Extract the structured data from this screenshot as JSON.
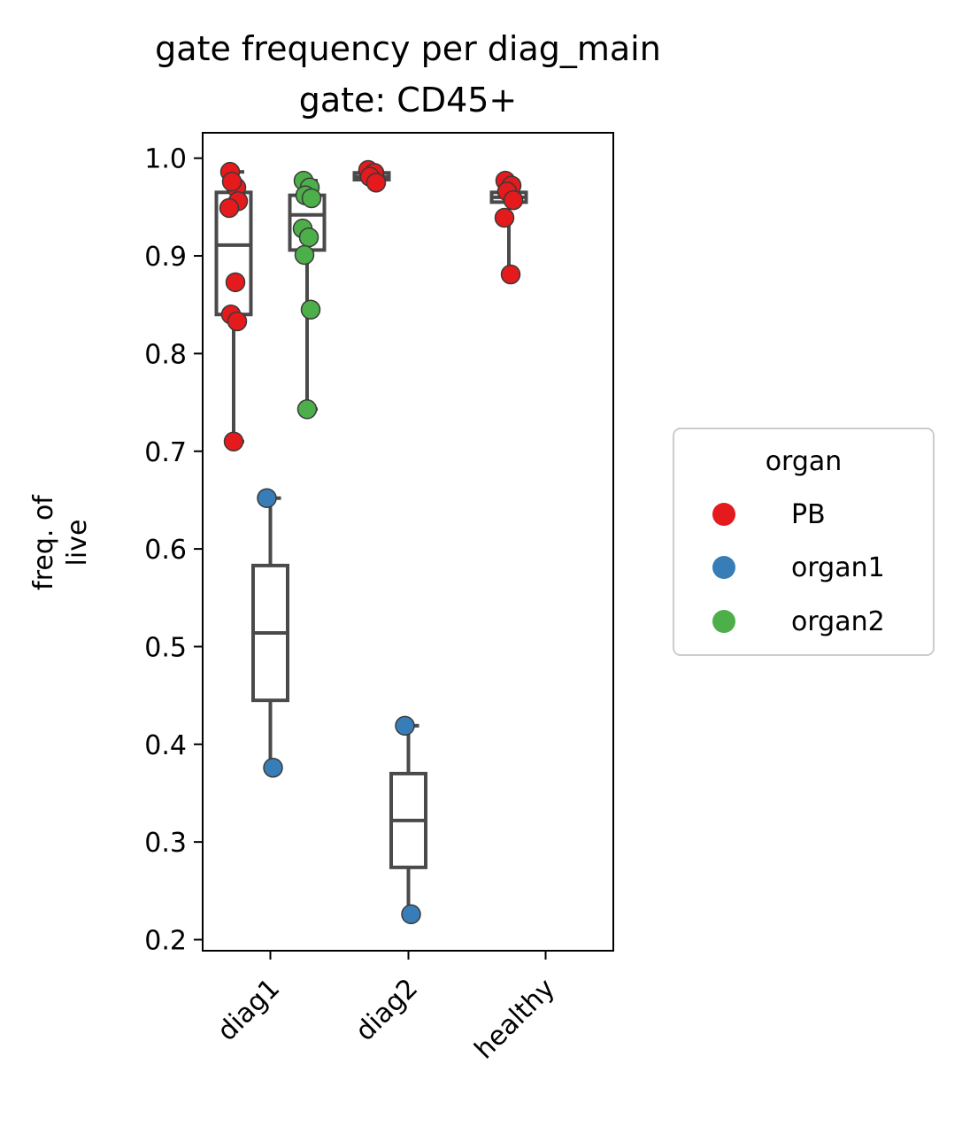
{
  "chart_data": {
    "type": "box",
    "title": "gate frequency per diag_main",
    "subtitle": "gate: CD45+",
    "xlabel": "",
    "ylabel_line1": "freq. of",
    "ylabel_line2": "live",
    "ylim": [
      0.19,
      1.025
    ],
    "yticks": [
      "0.2",
      "0.3",
      "0.4",
      "0.5",
      "0.6",
      "0.7",
      "0.8",
      "0.9",
      "1.0"
    ],
    "categories": [
      "diag1",
      "diag2",
      "healthy"
    ],
    "grid": false,
    "legend": {
      "title": "organ",
      "placement": "right",
      "entries": [
        {
          "name": "PB",
          "color": "#e41a1c"
        },
        {
          "name": "organ1",
          "color": "#377eb8"
        },
        {
          "name": "organ2",
          "color": "#4daf4a"
        }
      ]
    },
    "boxes": [
      {
        "category": "diag1",
        "organ": "PB",
        "min": 0.71,
        "q1": 0.84,
        "median": 0.911,
        "q3": 0.965,
        "max": 0.986
      },
      {
        "category": "diag1",
        "organ": "organ1",
        "min": 0.376,
        "q1": 0.445,
        "median": 0.514,
        "q3": 0.583,
        "max": 0.652
      },
      {
        "category": "diag1",
        "organ": "organ2",
        "min": 0.743,
        "q1": 0.906,
        "median": 0.942,
        "q3": 0.962,
        "max": 0.977
      },
      {
        "category": "diag2",
        "organ": "PB",
        "min": 0.975,
        "q1": 0.978,
        "median": 0.981,
        "q3": 0.985,
        "max": 0.988
      },
      {
        "category": "diag2",
        "organ": "organ1",
        "min": 0.226,
        "q1": 0.274,
        "median": 0.322,
        "q3": 0.37,
        "max": 0.419
      },
      {
        "category": "healthy",
        "organ": "PB",
        "min": 0.881,
        "q1": 0.955,
        "median": 0.96,
        "q3": 0.965,
        "max": 0.977
      }
    ],
    "points": [
      {
        "category": "diag1",
        "organ": "PB",
        "values": [
          0.986,
          0.97,
          0.976,
          0.956,
          0.949,
          0.873,
          0.84,
          0.833,
          0.71
        ]
      },
      {
        "category": "diag1",
        "organ": "organ1",
        "values": [
          0.652,
          0.376
        ]
      },
      {
        "category": "diag1",
        "organ": "organ2",
        "values": [
          0.977,
          0.97,
          0.962,
          0.959,
          0.928,
          0.919,
          0.901,
          0.845,
          0.743
        ]
      },
      {
        "category": "diag2",
        "organ": "PB",
        "values": [
          0.988,
          0.985,
          0.981,
          0.975
        ]
      },
      {
        "category": "diag2",
        "organ": "organ1",
        "values": [
          0.419,
          0.226
        ]
      },
      {
        "category": "healthy",
        "organ": "PB",
        "values": [
          0.977,
          0.972,
          0.966,
          0.957,
          0.939,
          0.881
        ]
      }
    ]
  }
}
